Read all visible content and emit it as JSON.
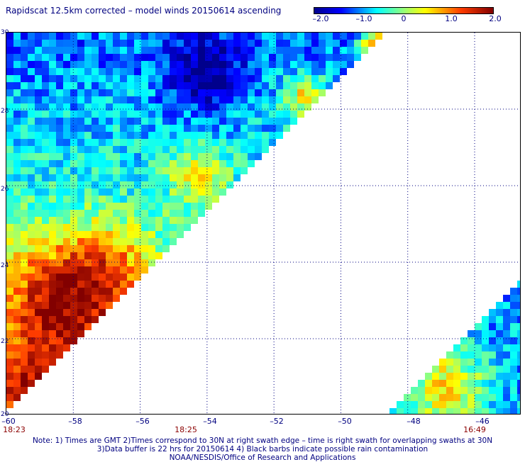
{
  "title": "Rapidscat 12.5km corrected – model winds 20150614 ascending",
  "colorbar": {
    "ticks": [
      "–2.0",
      "–1.0",
      "0",
      "1.0",
      "2.0"
    ],
    "range": [
      -2.0,
      2.0
    ]
  },
  "map": {
    "lat_range": [
      20,
      30
    ],
    "lon_range": [
      -60,
      -44.6
    ],
    "lat_ticks": [
      "20",
      "22",
      "24",
      "26",
      "28",
      "30"
    ],
    "lon_ticks": [
      "–60",
      "–58",
      "–56",
      "–54",
      "–52",
      "–50",
      "–48",
      "–46"
    ],
    "times": [
      "18:23",
      "18:25",
      "16:49"
    ]
  },
  "notes": {
    "line1": "Note: 1) Times are GMT 2)Times correspond to 30N at right swath edge – time is right swath for overlapping swaths at 30N",
    "line2": "3)Data buffer is 22 hrs for 20150614 4) Black barbs indicate possible rain contamination",
    "line3": "NOAA/NESDIS/Office of Research and Applications"
  }
}
